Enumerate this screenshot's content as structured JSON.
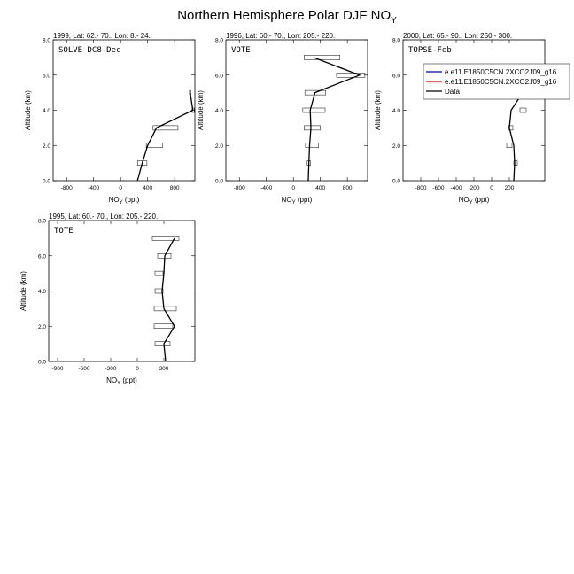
{
  "title": "Northern Hemisphere Polar DJF NO",
  "title_sub": "Y",
  "chart_data": [
    {
      "type": "line",
      "header": "1999, Lat: 62.- 70., Lon: 8.- 24.",
      "label": "SOLVE DC8-Dec",
      "xlabel": "NO",
      "xlabel_sub": "Y",
      "xlabel_unit": " (ppt)",
      "ylabel": "Altitude (km)",
      "xlim": [
        -1000,
        1100
      ],
      "ylim": [
        0,
        8
      ],
      "xticks": [
        -800,
        -400,
        0,
        400,
        800
      ],
      "yticks": [
        "0.0",
        "2.0",
        "4.0",
        "6.0",
        "8.0"
      ],
      "series": [
        {
          "name": "Data",
          "x": [
            250,
            320,
            400,
            530,
            1070,
            1030
          ],
          "y": [
            0,
            1,
            2,
            3,
            4,
            5
          ]
        }
      ],
      "ranges": [
        {
          "y": 1,
          "lo": 250,
          "hi": 390
        },
        {
          "y": 2,
          "lo": 380,
          "hi": 620
        },
        {
          "y": 3,
          "lo": 480,
          "hi": 850
        },
        {
          "y": 4,
          "lo": 1060,
          "hi": 1090
        },
        {
          "y": 5,
          "lo": 1020,
          "hi": 1040
        }
      ]
    },
    {
      "type": "line",
      "header": "1996, Lat: 60.- 70., Lon: 205.- 220.",
      "label": "VOTE",
      "xlabel": "NO",
      "xlabel_sub": "Y",
      "xlabel_unit": " (ppt)",
      "ylabel": "Altitude (km)",
      "xlim": [
        -1000,
        1100
      ],
      "ylim": [
        0,
        8
      ],
      "xticks": [
        -800,
        -400,
        0,
        400,
        800
      ],
      "yticks": [
        "0.0",
        "2.0",
        "4.0",
        "6.0",
        "8.0"
      ],
      "series": [
        {
          "name": "Data",
          "x": [
            220,
            230,
            240,
            260,
            250,
            320,
            980,
            300
          ],
          "y": [
            0,
            1,
            2,
            3,
            4,
            5,
            6,
            7
          ]
        }
      ],
      "ranges": [
        {
          "y": 1,
          "lo": 205,
          "hi": 255
        },
        {
          "y": 2,
          "lo": 180,
          "hi": 370
        },
        {
          "y": 3,
          "lo": 160,
          "hi": 400
        },
        {
          "y": 4,
          "lo": 140,
          "hi": 470
        },
        {
          "y": 5,
          "lo": 170,
          "hi": 480
        },
        {
          "y": 6,
          "lo": 640,
          "hi": 1060
        },
        {
          "y": 7,
          "lo": 160,
          "hi": 690
        }
      ]
    },
    {
      "type": "line",
      "header": "2000, Lat: 65.- 90., Lon: 250.- 300.",
      "label": "TOPSE-Feb",
      "xlabel": "NO",
      "xlabel_sub": "Y",
      "xlabel_unit": " (ppt)",
      "ylabel": "Altitude (km)",
      "xlim": [
        -1000,
        600
      ],
      "ylim": [
        0,
        8
      ],
      "xticks": [
        -800,
        -600,
        -400,
        -200,
        0,
        200
      ],
      "yticks": [
        "0.0",
        "2.0",
        "4.0",
        "6.0",
        "8.0"
      ],
      "series": [
        {
          "name": "Data",
          "x": [
            250,
            260,
            250,
            200,
            220,
            350,
            370
          ],
          "y": [
            0,
            1,
            2,
            3,
            4,
            5,
            6
          ]
        }
      ],
      "ranges": [
        {
          "y": 1,
          "lo": 250,
          "hi": 290
        },
        {
          "y": 2,
          "lo": 170,
          "hi": 230
        },
        {
          "y": 3,
          "lo": 190,
          "hi": 240
        },
        {
          "y": 4,
          "lo": 320,
          "hi": 390
        },
        {
          "y": 5,
          "lo": 320,
          "hi": 420
        },
        {
          "y": 6,
          "lo": 340,
          "hi": 400
        }
      ],
      "legend": {
        "placement": "top-right",
        "entries": [
          {
            "name": "e.e11.E1850C5CN.2XCO2.f09_g16",
            "color": "#0000cc"
          },
          {
            "name": "e.e11.E1850C5CN.2XCO2.f09_g16",
            "color": "#dd0000"
          },
          {
            "name": "Data",
            "color": "#000000"
          }
        ]
      }
    },
    {
      "type": "line",
      "header": "1995, Lat: 60.- 70., Lon: 205.- 220.",
      "label": "TOTE",
      "xlabel": "NO",
      "xlabel_sub": "Y",
      "xlabel_unit": " (ppt)",
      "ylabel": "Altitude (km)",
      "xlim": [
        -1000,
        650
      ],
      "ylim": [
        0,
        8
      ],
      "xticks": [
        -900,
        -600,
        -300,
        0,
        300
      ],
      "yticks": [
        "0.0",
        "2.0",
        "4.0",
        "6.0",
        "8.0"
      ],
      "series": [
        {
          "name": "Data",
          "x": [
            320,
            300,
            420,
            300,
            280,
            300,
            310,
            420
          ],
          "y": [
            0,
            1,
            2,
            3,
            4,
            5,
            6,
            7
          ]
        }
      ],
      "ranges": [
        {
          "y": 1,
          "lo": 200,
          "hi": 370
        },
        {
          "y": 2,
          "lo": 190,
          "hi": 400
        },
        {
          "y": 3,
          "lo": 190,
          "hi": 440
        },
        {
          "y": 4,
          "lo": 200,
          "hi": 290
        },
        {
          "y": 5,
          "lo": 200,
          "hi": 290
        },
        {
          "y": 6,
          "lo": 230,
          "hi": 380
        },
        {
          "y": 7,
          "lo": 170,
          "hi": 470
        }
      ]
    }
  ]
}
